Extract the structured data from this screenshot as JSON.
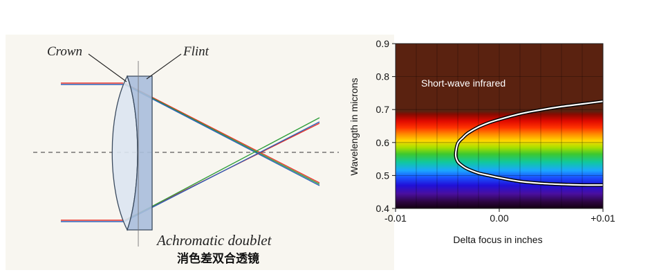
{
  "diagram": {
    "crown_label": "Crown",
    "flint_label": "Flint",
    "caption_en": "Achromatic doublet",
    "caption_zh": "消色差双合透镜",
    "colors": {
      "background": "#f8f6f0",
      "crown_glass": "#dbe6f1",
      "flint_glass": "#a9bedb",
      "ray_red": "#e8332a",
      "ray_green": "#2f9e3c",
      "ray_blue": "#2c5fb8"
    }
  },
  "chart_data": {
    "type": "heatmap",
    "xlabel": "Delta focus in inches",
    "ylabel": "Wavelength in microns",
    "x_ticks": [
      "-0.01",
      "0.00",
      "+0.01"
    ],
    "x_tick_values": [
      -0.01,
      0.0,
      0.01
    ],
    "y_ticks": [
      "0.9",
      "0.8",
      "0.7",
      "0.6",
      "0.5",
      "0.4"
    ],
    "y_tick_values": [
      0.9,
      0.8,
      0.7,
      0.6,
      0.5,
      0.4
    ],
    "xlim": [
      -0.01,
      0.01
    ],
    "ylim": [
      0.4,
      0.9
    ],
    "annotation": "Short-wave infrared",
    "grid": true,
    "curve": {
      "x": [
        0.01,
        0.008,
        0.006,
        0.004,
        0.002,
        0.0,
        -0.001,
        -0.002,
        -0.003,
        -0.0035,
        -0.004,
        -0.0042,
        -0.004,
        -0.0035,
        -0.003,
        -0.002,
        -0.001,
        0.0,
        0.002,
        0.004,
        0.006,
        0.008,
        0.01
      ],
      "y": [
        0.725,
        0.717,
        0.709,
        0.699,
        0.687,
        0.67,
        0.66,
        0.647,
        0.629,
        0.615,
        0.597,
        0.563,
        0.542,
        0.528,
        0.519,
        0.507,
        0.5,
        0.493,
        0.482,
        0.476,
        0.473,
        0.471,
        0.471
      ]
    }
  }
}
